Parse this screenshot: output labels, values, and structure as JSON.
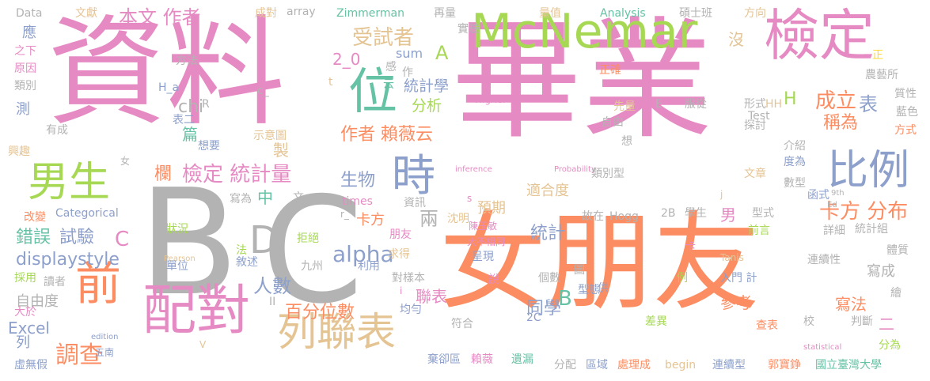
{
  "palette": {
    "pink": "#E68AC3",
    "orange": "#FC8D62",
    "green": "#A6D854",
    "teal": "#66C2A5",
    "blue": "#8DA0CB",
    "gray": "#B3B3B3",
    "tan": "#E5C494",
    "yellow": "#FFD92F"
  },
  "words": [
    {
      "id": "資料",
      "text": "資料",
      "color": "#E68AC3"
    },
    {
      "id": "畢業",
      "text": "畢業",
      "color": "#E68AC3"
    },
    {
      "id": "B",
      "text": "B",
      "color": "#B3B3B3"
    },
    {
      "id": "C",
      "text": "C",
      "color": "#B3B3B3"
    },
    {
      "id": "女朋友",
      "text": "女朋友",
      "color": "#FC8D62"
    },
    {
      "id": "McNemar",
      "text": "McNemar",
      "color": "#A6D854"
    },
    {
      "id": "檢定1",
      "text": "檢定",
      "color": "#E68AC3"
    },
    {
      "id": "配對",
      "text": "配對",
      "color": "#E68AC3"
    },
    {
      "id": "列聯表1",
      "text": "列聯表",
      "color": "#E5C494"
    },
    {
      "id": "男生",
      "text": "男生",
      "color": "#A6D854"
    },
    {
      "id": "位",
      "text": "位",
      "color": "#66C2A5"
    },
    {
      "id": "時",
      "text": "時",
      "color": "#8DA0CB"
    },
    {
      "id": "前",
      "text": "前",
      "color": "#FC8D62"
    },
    {
      "id": "比例",
      "text": "比例",
      "color": "#8DA0CB"
    },
    {
      "id": "D",
      "text": "D",
      "color": "#B3B3B3"
    },
    {
      "id": "受試者",
      "text": "受試者",
      "color": "#E5C494"
    },
    {
      "id": "A1",
      "text": "A",
      "color": "#A6D854"
    },
    {
      "id": "作者1",
      "text": "本文 作者",
      "color": "#E68AC3"
    },
    {
      "id": "卡方分布",
      "text": "卡方 分布",
      "color": "#FC8D62"
    },
    {
      "id": "成立",
      "text": "成立",
      "color": "#FC8D62"
    },
    {
      "id": "檢定統計量",
      "text": "檢定 統計量",
      "color": "#E68AC3"
    },
    {
      "id": "作者賴薇云",
      "text": "作者 賴薇云",
      "color": "#FC8D62"
    },
    {
      "id": "統計學",
      "text": "統計學",
      "color": "#8DA0CB"
    },
    {
      "id": "分析",
      "text": "分析",
      "color": "#A6D854"
    },
    {
      "id": "生物",
      "text": "生物",
      "color": "#8DA0CB"
    },
    {
      "id": "alpha",
      "text": "alpha",
      "color": "#8DA0CB"
    },
    {
      "id": "人數",
      "text": "人數",
      "color": "#8DA0CB"
    },
    {
      "id": "調查",
      "text": "調查",
      "color": "#FC8D62"
    },
    {
      "id": "displaystyle",
      "text": "displaystyle",
      "color": "#8DA0CB"
    },
    {
      "id": "試驗",
      "text": "試驗",
      "color": "#8DA0CB"
    },
    {
      "id": "錯誤",
      "text": "錯誤",
      "color": "#66C2A5"
    },
    {
      "id": "表",
      "text": "表",
      "color": "#8DA0CB"
    },
    {
      "id": "稱為",
      "text": "稱為",
      "color": "#FC8D62"
    },
    {
      "id": "統計",
      "text": "統計",
      "color": "#8DA0CB"
    },
    {
      "id": "卡方",
      "text": "卡方",
      "color": "#FC8D62"
    },
    {
      "id": "百分位數",
      "text": "百分位數",
      "color": "#FC8D62"
    },
    {
      "id": "自由度",
      "text": "自由度",
      "color": "#B3B3B3"
    },
    {
      "id": "同學",
      "text": "同學",
      "color": "#8DA0CB"
    },
    {
      "id": "寫法",
      "text": "寫法",
      "color": "#FC8D62"
    },
    {
      "id": "2_0",
      "text": "2_0",
      "color": "#E68AC3"
    },
    {
      "id": "sum",
      "text": "sum",
      "color": "#8DA0CB"
    },
    {
      "id": "沒",
      "text": "沒",
      "color": "#E5C494"
    },
    {
      "id": "H",
      "text": "H",
      "color": "#A6D854"
    },
    {
      "id": "chi",
      "text": "chi",
      "color": "#B3B3B3"
    },
    {
      "id": "篇",
      "text": "篇",
      "color": "#66C2A5"
    },
    {
      "id": "製",
      "text": "製",
      "color": "#E5C494"
    },
    {
      "id": "欄",
      "text": "欄",
      "color": "#FC8D62"
    },
    {
      "id": "中",
      "text": "中",
      "color": "#66C2A5"
    },
    {
      "id": "兩",
      "text": "兩",
      "color": "#B3B3B3"
    },
    {
      "id": "C2",
      "text": "C",
      "color": "#E68AC3"
    },
    {
      "id": "B2",
      "text": "B",
      "color": "#66C2A5"
    },
    {
      "id": "男",
      "text": "男",
      "color": "#E68AC3"
    },
    {
      "id": "聯表",
      "text": "聯表",
      "color": "#E68AC3"
    },
    {
      "id": "二",
      "text": "二",
      "color": "#E68AC3"
    },
    {
      "id": "寫成",
      "text": "寫成",
      "color": "#B3B3B3"
    },
    {
      "id": "參考",
      "text": "參考",
      "color": "#FC8D62"
    },
    {
      "id": "預期",
      "text": "預期",
      "color": "#E5C494"
    },
    {
      "id": "適合度",
      "text": "適合度",
      "color": "#E5C494"
    },
    {
      "id": "Excel",
      "text": "Excel",
      "color": "#8DA0CB"
    },
    {
      "id": "Data",
      "text": "Data",
      "color": "#B3B3B3"
    },
    {
      "id": "文獻",
      "text": "文獻",
      "color": "#E5C494"
    },
    {
      "id": "成對",
      "text": "成對",
      "color": "#E5C494"
    },
    {
      "id": "array",
      "text": "array",
      "color": "#B3B3B3"
    },
    {
      "id": "Zimmerman",
      "text": "Zimmerman",
      "color": "#66C2A5"
    },
    {
      "id": "再量",
      "text": "再量",
      "color": "#B3B3B3"
    },
    {
      "id": "實驗",
      "text": "實驗",
      "color": "#B3B3B3"
    },
    {
      "id": "量值",
      "text": "量值",
      "color": "#E5C494"
    },
    {
      "id": "Analysis",
      "text": "Analysis",
      "color": "#66C2A5"
    },
    {
      "id": "碩士班",
      "text": "碩士班",
      "color": "#B3B3B3"
    },
    {
      "id": "方向",
      "text": "方向",
      "color": "#E5C494"
    },
    {
      "id": "應",
      "text": "應",
      "color": "#8DA0CB"
    },
    {
      "id": "之下",
      "text": "之下",
      "color": "#E68AC3"
    },
    {
      "id": "原因",
      "text": "原因",
      "color": "#E68AC3"
    },
    {
      "id": "類別",
      "text": "類別",
      "color": "#B3B3B3"
    },
    {
      "id": "方法",
      "text": "方法",
      "color": "#B3B3B3"
    },
    {
      "id": "感",
      "text": "感",
      "color": "#B3B3B3"
    },
    {
      "id": "云",
      "text": "云",
      "color": "#66C2A5"
    },
    {
      "id": "作",
      "text": "作",
      "color": "#B3B3B3"
    },
    {
      "id": "正確",
      "text": "正確",
      "color": "#FC8D62"
    },
    {
      "id": "正",
      "text": "正",
      "color": "#FFD92F"
    },
    {
      "id": "農藝所",
      "text": "農藝所",
      "color": "#B3B3B3"
    },
    {
      "id": "質性",
      "text": "質性",
      "color": "#B3B3B3"
    },
    {
      "id": "H_a",
      "text": "H_a",
      "color": "#8DA0CB"
    },
    {
      "id": "R",
      "text": "R",
      "color": "#B3B3B3"
    },
    {
      "id": "c_",
      "text": "c_",
      "color": "#B3B3B3"
    },
    {
      "id": "t",
      "text": "t",
      "color": "#E5C494"
    },
    {
      "id": "Higher",
      "text": "Higher",
      "color": "#E68AC3"
    },
    {
      "id": "服從",
      "text": "服從",
      "color": "#B3B3B3"
    },
    {
      "id": "形式",
      "text": "形式",
      "color": "#B3B3B3"
    },
    {
      "id": "先量",
      "text": "先量",
      "color": "#E5C494"
    },
    {
      "id": "E",
      "text": "E",
      "color": "#B3B3B3"
    },
    {
      "id": "HH",
      "text": "HH",
      "color": "#E5C494"
    },
    {
      "id": "藍色",
      "text": "藍色",
      "color": "#B3B3B3"
    },
    {
      "id": "方式",
      "text": "方式",
      "color": "#FC8D62"
    },
    {
      "id": "有成",
      "text": "有成",
      "color": "#B3B3B3"
    },
    {
      "id": "表二",
      "text": "表二",
      "color": "#8DA0CB"
    },
    {
      "id": "自由",
      "text": "自由",
      "color": "#B3B3B3"
    },
    {
      "id": "探討",
      "text": "探討",
      "color": "#B3B3B3"
    },
    {
      "id": "Test",
      "text": "Test",
      "color": "#B3B3B3"
    },
    {
      "id": "測",
      "text": "測",
      "color": "#8DA0CB"
    },
    {
      "id": "示意圖",
      "text": "示意圖",
      "color": "#E5C494"
    },
    {
      "id": "想要",
      "text": "想要",
      "color": "#8DA0CB"
    },
    {
      "id": "想",
      "text": "想",
      "color": "#B3B3B3"
    },
    {
      "id": "介紹",
      "text": "介紹",
      "color": "#B3B3B3"
    },
    {
      "id": "興趣",
      "text": "興趣",
      "color": "#E5C494"
    },
    {
      "id": "女",
      "text": "女",
      "color": "#B3B3B3"
    },
    {
      "id": "inference",
      "text": "inference",
      "color": "#E68AC3"
    },
    {
      "id": "Probability",
      "text": "Probability",
      "color": "#E68AC3"
    },
    {
      "id": "類別型",
      "text": "類別型",
      "color": "#B3B3B3"
    },
    {
      "id": "文章",
      "text": "文章",
      "color": "#E5C494"
    },
    {
      "id": "度為",
      "text": "度為",
      "color": "#8DA0CB"
    },
    {
      "id": "數型",
      "text": "數型",
      "color": "#B3B3B3"
    },
    {
      "id": "times",
      "text": "times",
      "color": "#E68AC3"
    },
    {
      "id": "寫為",
      "text": "寫為",
      "color": "#B3B3B3"
    },
    {
      "id": "文",
      "text": "文",
      "color": "#B3B3B3"
    },
    {
      "id": "s",
      "text": "s",
      "color": "#E68AC3"
    },
    {
      "id": "j",
      "text": "j",
      "color": "#E5C494"
    },
    {
      "id": "函式",
      "text": "函式",
      "color": "#8DA0CB"
    },
    {
      "id": "9th",
      "text": "9th",
      "color": "#B3B3B3"
    },
    {
      "id": "Ed",
      "text": "Ed",
      "color": "#B3B3B3"
    },
    {
      "id": "改變",
      "text": "改變",
      "color": "#FC8D62"
    },
    {
      "id": "Categorical",
      "text": "Categorical",
      "color": "#8DA0CB"
    },
    {
      "id": "資訊",
      "text": "資訊",
      "color": "#B3B3B3"
    },
    {
      "id": "沈明",
      "text": "沈明",
      "color": "#E5C494"
    },
    {
      "id": "故在",
      "text": "故在",
      "color": "#B3B3B3"
    },
    {
      "id": "Hogg",
      "text": "Hogg",
      "color": "#B3B3B3"
    },
    {
      "id": "2B",
      "text": "2B",
      "color": "#B3B3B3"
    },
    {
      "id": "學生",
      "text": "學生",
      "color": "#B3B3B3"
    },
    {
      "id": "型式",
      "text": "型式",
      "color": "#B3B3B3"
    },
    {
      "id": "詳細",
      "text": "詳細",
      "color": "#B3B3B3"
    },
    {
      "id": "統計組",
      "text": "統計組",
      "color": "#B3B3B3"
    },
    {
      "id": "前言",
      "text": "前言",
      "color": "#A6D854"
    },
    {
      "id": "r",
      "text": "r_",
      "color": "#B3B3B3"
    },
    {
      "id": "陳玉敏",
      "text": "陳玉敏",
      "color": "#E68AC3"
    },
    {
      "id": "朋友",
      "text": "朋友",
      "color": "#E68AC3"
    },
    {
      "id": "大不相同",
      "text": "大不相同",
      "color": "#E68AC3"
    },
    {
      "id": "求得",
      "text": "求得",
      "color": "#E5C494"
    },
    {
      "id": "拒絕",
      "text": "拒絕",
      "color": "#A6D854"
    },
    {
      "id": "呈現",
      "text": "呈現",
      "color": "#8DA0CB"
    },
    {
      "id": "狀況",
      "text": "狀況",
      "color": "#A6D854"
    },
    {
      "id": "法",
      "text": "法",
      "color": "#A6D854"
    },
    {
      "id": "九州",
      "text": "九州",
      "color": "#B3B3B3"
    },
    {
      "id": "利用",
      "text": "利用",
      "color": "#8DA0CB"
    },
    {
      "id": "說",
      "text": "說",
      "color": "#E68AC3"
    },
    {
      "id": "卡",
      "text": "卡",
      "color": "#E68AC3"
    },
    {
      "id": "連續性",
      "text": "連續性",
      "color": "#B3B3B3"
    },
    {
      "id": "體質",
      "text": "體質",
      "color": "#B3B3B3"
    },
    {
      "id": "Pearson",
      "text": "Pearson",
      "color": "#E5C494"
    },
    {
      "id": "Tanis",
      "text": "Tanis",
      "color": "#E5C494"
    },
    {
      "id": "入門計",
      "text": "入門 計",
      "color": "#8DA0CB"
    },
    {
      "id": "單位",
      "text": "單位",
      "color": "#8DA0CB"
    },
    {
      "id": "敘述",
      "text": "敘述",
      "color": "#8DA0CB"
    },
    {
      "id": "對樣本",
      "text": "對樣本",
      "color": "#B3B3B3"
    },
    {
      "id": "個數",
      "text": "個數",
      "color": "#B3B3B3"
    },
    {
      "id": "圖",
      "text": "圖",
      "color": "#B3B3B3"
    },
    {
      "id": "例",
      "text": "例",
      "color": "#A6D854"
    },
    {
      "id": "採用",
      "text": "採用",
      "color": "#A6D854"
    },
    {
      "id": "讀者",
      "text": "讀者",
      "color": "#B3B3B3"
    },
    {
      "id": "II",
      "text": "II",
      "color": "#B3B3B3"
    },
    {
      "id": "i",
      "text": "i",
      "color": "#E68AC3"
    },
    {
      "id": "供",
      "text": "供",
      "color": "#8DA0CB"
    },
    {
      "id": "型態",
      "text": "型態",
      "color": "#8DA0CB"
    },
    {
      "id": "大於",
      "text": "大於",
      "color": "#E68AC3"
    },
    {
      "id": "均勻",
      "text": "均勻",
      "color": "#8DA0CB"
    },
    {
      "id": "2C",
      "text": "2C",
      "color": "#8DA0CB"
    },
    {
      "id": "繪",
      "text": "繪",
      "color": "#B3B3B3"
    },
    {
      "id": "列",
      "text": "列",
      "color": "#8DA0CB"
    },
    {
      "id": "edition",
      "text": "edition",
      "color": "#8DA0CB"
    },
    {
      "id": "V",
      "text": "V",
      "color": "#E5C494"
    },
    {
      "id": "符合",
      "text": "符合",
      "color": "#B3B3B3"
    },
    {
      "id": "差異",
      "text": "差異",
      "color": "#A6D854"
    },
    {
      "id": "查表",
      "text": "查表",
      "color": "#FC8D62"
    },
    {
      "id": "校",
      "text": "校",
      "color": "#B3B3B3"
    },
    {
      "id": "判斷",
      "text": "判斷",
      "color": "#B3B3B3"
    },
    {
      "id": "statistical",
      "text": "statistical",
      "color": "#E68AC3"
    },
    {
      "id": "分為",
      "text": "分為",
      "color": "#A6D854"
    },
    {
      "id": "虛無假",
      "text": "虛無假",
      "color": "#8DA0CB"
    },
    {
      "id": "五南",
      "text": "五南",
      "color": "#8DA0CB"
    },
    {
      "id": "棄卻區",
      "text": "棄卻區",
      "color": "#8DA0CB"
    },
    {
      "id": "賴薇",
      "text": "賴薇",
      "color": "#E68AC3"
    },
    {
      "id": "遺漏",
      "text": "遺漏",
      "color": "#66C2A5"
    },
    {
      "id": "分配",
      "text": "分配",
      "color": "#B3B3B3"
    },
    {
      "id": "區域",
      "text": "區域",
      "color": "#8DA0CB"
    },
    {
      "id": "處理成",
      "text": "處理成",
      "color": "#FC8D62"
    },
    {
      "id": "begin",
      "text": "begin",
      "color": "#E5C494"
    },
    {
      "id": "連續型",
      "text": "連續型",
      "color": "#8DA0CB"
    },
    {
      "id": "郭寶錚",
      "text": "郭寶錚",
      "color": "#FC8D62"
    },
    {
      "id": "國立臺灣大學",
      "text": "國立臺灣大學",
      "color": "#66C2A5"
    }
  ]
}
